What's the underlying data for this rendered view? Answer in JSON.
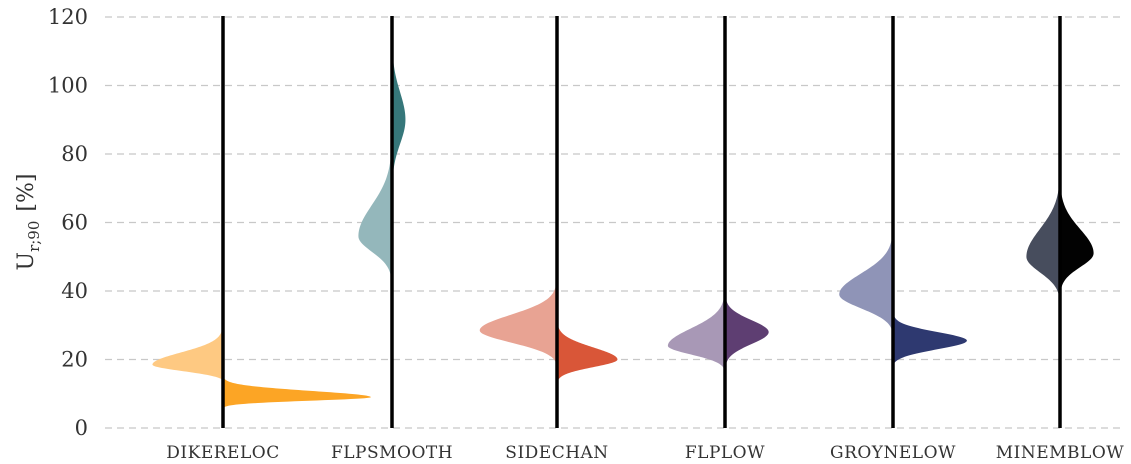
{
  "chart_data": {
    "type": "violin",
    "ylabel": "U_r;90 [%]",
    "ylim": [
      0,
      120
    ],
    "yticks": [
      0,
      20,
      40,
      60,
      80,
      100,
      120
    ],
    "grid": true,
    "grid_style": "dashed-horizontal",
    "categories": [
      "DIKERELOC",
      "FLPSMOOTH",
      "SIDECHAN",
      "FLPLOW",
      "GROYNELOW",
      "MINEMBLOW"
    ],
    "series": [
      {
        "category": "DIKERELOC",
        "left": {
          "color": "#FEC982",
          "peak": 18.5,
          "sd_low": 1.8,
          "sd_high": 3.5,
          "min": 14,
          "max": 33,
          "max_width": 0.42
        },
        "right": {
          "color": "#FCA525",
          "peak": 9,
          "sd_low": 1.0,
          "sd_high": 1.8,
          "min": 5.5,
          "max": 17,
          "max_width": 0.88
        }
      },
      {
        "category": "FLPSMOOTH",
        "left": {
          "color": "#94B7BB",
          "peak": 56,
          "sd_low": 4.5,
          "sd_high": 9,
          "min": 38,
          "max": 105,
          "max_width": 0.2
        },
        "right": {
          "color": "#36777A",
          "peak": 90,
          "sd_low": 7,
          "sd_high": 8,
          "min": 60,
          "max": 122,
          "max_width": 0.08
        }
      },
      {
        "category": "SIDECHAN",
        "left": {
          "color": "#E8A393",
          "peak": 28.5,
          "sd_low": 3.5,
          "sd_high": 4.5,
          "min": 18,
          "max": 53,
          "max_width": 0.46
        },
        "right": {
          "color": "#D95638",
          "peak": 20,
          "sd_low": 2.2,
          "sd_high": 3.5,
          "min": 12,
          "max": 35,
          "max_width": 0.36
        }
      },
      {
        "category": "FLPLOW",
        "left": {
          "color": "#A898B6",
          "peak": 24,
          "sd_low": 2.5,
          "sd_high": 5,
          "min": 16,
          "max": 48,
          "max_width": 0.34
        },
        "right": {
          "color": "#5E3E72",
          "peak": 28,
          "sd_low": 3.5,
          "sd_high": 3.5,
          "min": 15,
          "max": 46,
          "max_width": 0.26
        }
      },
      {
        "category": "GROYNELOW",
        "left": {
          "color": "#8F94B7",
          "peak": 39,
          "sd_low": 4,
          "sd_high": 6,
          "min": 27,
          "max": 62,
          "max_width": 0.32
        },
        "right": {
          "color": "#2E3970",
          "peak": 25.5,
          "sd_low": 2.5,
          "sd_high": 2.5,
          "min": 18,
          "max": 44,
          "max_width": 0.44
        }
      },
      {
        "category": "MINEMBLOW",
        "left": {
          "color": "#474D5D",
          "peak": 50,
          "sd_low": 4.5,
          "sd_high": 8,
          "min": 36,
          "max": 78,
          "max_width": 0.2
        },
        "right": {
          "color": "#020202",
          "peak": 51,
          "sd_low": 4,
          "sd_high": 7,
          "min": 33,
          "max": 78,
          "max_width": 0.2
        }
      }
    ]
  },
  "ylabel_main": "U",
  "ylabel_sub": "r;90",
  "ylabel_unit": "[%]"
}
